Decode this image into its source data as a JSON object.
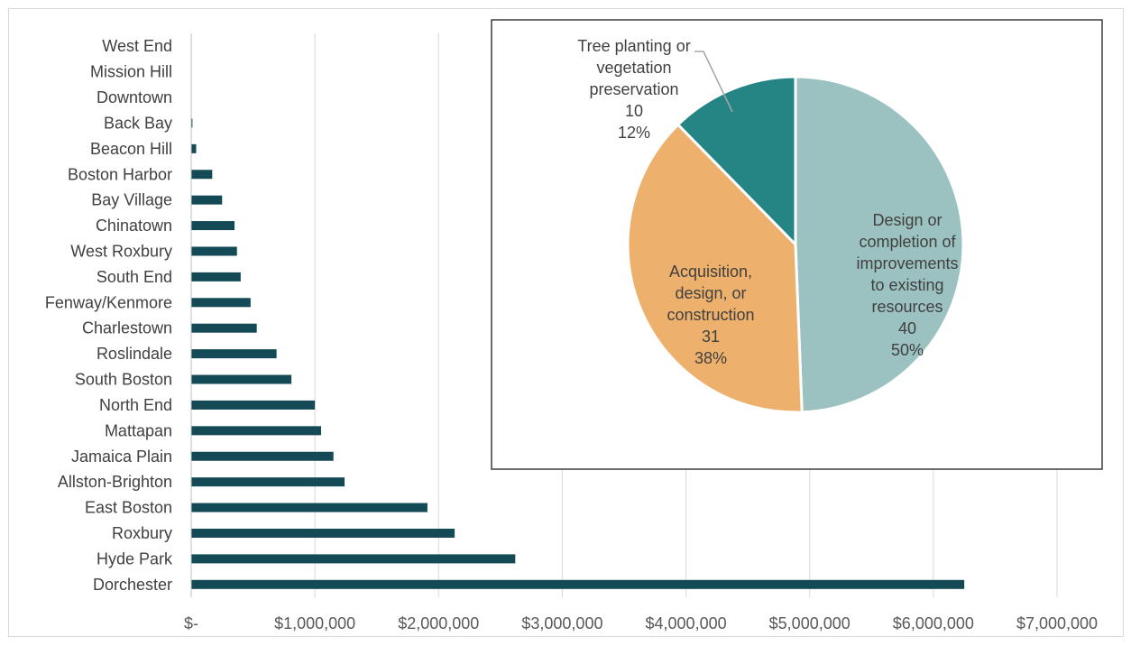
{
  "colors": {
    "bar": "#134a56",
    "slice_improvements": "#9bc2c1",
    "slice_acquisition": "#edb16d",
    "slice_tree": "#258484",
    "gridline": "#d9d9d9"
  },
  "chart_data": [
    {
      "type": "bar",
      "orientation": "horizontal",
      "title": "",
      "xlabel": "",
      "ylabel": "",
      "categories": [
        "West End",
        "Mission Hill",
        "Downtown",
        "Back Bay",
        "Beacon Hill",
        "Boston Harbor",
        "Bay Village",
        "Chinatown",
        "West Roxbury",
        "South End",
        "Fenway/Kenmore",
        "Charlestown",
        "Roslindale",
        "South Boston",
        "North End",
        "Mattapan",
        "Jamaica Plain",
        "Allston-Brighton",
        "East Boston",
        "Roxbury",
        "Hyde Park",
        "Dorchester"
      ],
      "values": [
        0,
        0,
        0,
        10000,
        40000,
        170000,
        250000,
        350000,
        370000,
        400000,
        480000,
        530000,
        690000,
        810000,
        1000000,
        1050000,
        1150000,
        1240000,
        1910000,
        2130000,
        2620000,
        6250000
      ],
      "xlim": [
        0,
        7000000
      ],
      "xticks": [
        0,
        1000000,
        2000000,
        3000000,
        4000000,
        5000000,
        6000000,
        7000000
      ],
      "xtick_labels": [
        "$-",
        "$1,000,000",
        "$2,000,000",
        "$3,000,000",
        "$4,000,000",
        "$5,000,000",
        "$6,000,000",
        "$7,000,000"
      ],
      "grid": "vertical",
      "legend": "none"
    },
    {
      "type": "pie",
      "title": "",
      "legend": "none",
      "slices": [
        {
          "lines": [
            "Design or",
            "completion of",
            "improvements",
            "to existing",
            "resources"
          ],
          "value": 40,
          "percent": "50%"
        },
        {
          "lines": [
            "Acquisition,",
            "design, or",
            "construction"
          ],
          "value": 31,
          "percent": "38%"
        },
        {
          "lines": [
            "Tree planting or",
            "vegetation",
            "preservation"
          ],
          "value": 10,
          "percent": "12%"
        }
      ]
    }
  ]
}
